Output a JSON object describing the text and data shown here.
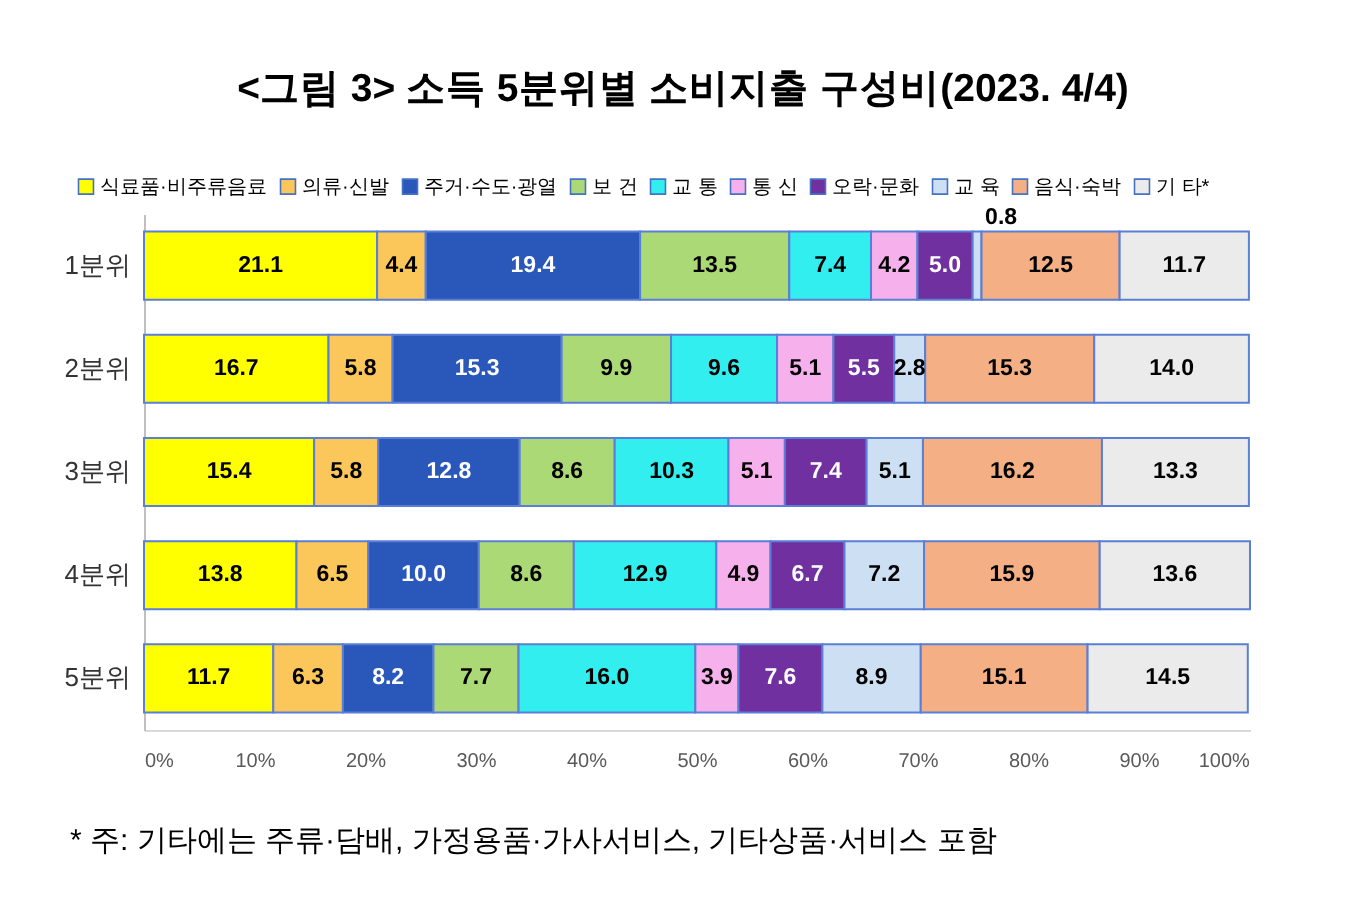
{
  "chart_data": {
    "type": "bar",
    "orientation": "horizontal",
    "stacked": true,
    "title": "<그림 3> 소득 5분위별 소비지출 구성비(2023. 4/4)",
    "categories": [
      "1분위",
      "2분위",
      "3분위",
      "4분위",
      "5분위"
    ],
    "series": [
      {
        "name": "식료품·비주류음료",
        "color": "#ffff00",
        "values": [
          21.1,
          16.7,
          15.4,
          13.8,
          11.7
        ],
        "value_labels": [
          "21.1",
          "16.7",
          "15.4",
          "13.8",
          "11.7"
        ]
      },
      {
        "name": "의류·신발",
        "color": "#fcc75a",
        "values": [
          4.4,
          5.8,
          5.8,
          6.5,
          6.3
        ],
        "value_labels": [
          "4.4",
          "5.8",
          "5.8",
          "6.5",
          "6.3"
        ]
      },
      {
        "name": "주거·수도·광열",
        "color": "#2a57ba",
        "values": [
          19.4,
          15.3,
          12.8,
          10.0,
          8.2
        ],
        "value_labels": [
          "19.4",
          "15.3",
          "12.8",
          "10.0",
          "8.2"
        ]
      },
      {
        "name": "보 건",
        "color": "#aad976",
        "values": [
          13.5,
          9.9,
          8.6,
          8.6,
          7.7
        ],
        "value_labels": [
          "13.5",
          "9.9",
          "8.6",
          "8.6",
          "7.7"
        ]
      },
      {
        "name": "교 통",
        "color": "#33eeee",
        "values": [
          7.4,
          9.6,
          10.3,
          12.9,
          16.0
        ],
        "value_labels": [
          "7.4",
          "9.6",
          "10.3",
          "12.9",
          "16.0"
        ]
      },
      {
        "name": "통 신",
        "color": "#f6b0ec",
        "values": [
          4.2,
          5.1,
          5.1,
          4.9,
          3.9
        ],
        "value_labels": [
          "4.2",
          "5.1",
          "5.1",
          "4.9",
          "3.9"
        ]
      },
      {
        "name": "오락·문화",
        "color": "#7030a0",
        "values": [
          5.0,
          5.5,
          7.4,
          6.7,
          7.6
        ],
        "value_labels": [
          "5.0",
          "5.5",
          "7.4",
          "6.7",
          "7.6"
        ]
      },
      {
        "name": "교 육",
        "color": "#cde0f3",
        "values": [
          0.8,
          2.8,
          5.1,
          7.2,
          8.9
        ],
        "value_labels": [
          "0.8",
          "2.8",
          "5.1",
          "7.2",
          "8.9"
        ]
      },
      {
        "name": "음식·숙박",
        "color": "#f4b084",
        "values": [
          12.5,
          15.3,
          16.2,
          15.9,
          15.1
        ],
        "value_labels": [
          "12.5",
          "15.3",
          "16.2",
          "15.9",
          "15.1"
        ]
      },
      {
        "name": "기 타*",
        "color": "#ebebeb",
        "values": [
          11.7,
          14.0,
          13.3,
          13.6,
          14.5
        ],
        "value_labels": [
          "11.7",
          "14.0",
          "13.3",
          "13.6",
          "14.5"
        ]
      }
    ],
    "xlim": [
      0,
      100.1
    ],
    "xticks": [
      {
        "value": 0,
        "label": "0%"
      },
      {
        "value": 10,
        "label": "10%"
      },
      {
        "value": 20,
        "label": "20%"
      },
      {
        "value": 30,
        "label": "30%"
      },
      {
        "value": 40,
        "label": "40%"
      },
      {
        "value": 50,
        "label": "50%"
      },
      {
        "value": 60,
        "label": "60%"
      },
      {
        "value": 70,
        "label": "70%"
      },
      {
        "value": 80,
        "label": "80%"
      },
      {
        "value": 90,
        "label": "90%"
      },
      {
        "value": 100,
        "label": "100%"
      }
    ],
    "legend": "top",
    "annotations": [
      "* 주: 기타에는 주류·담배, 가정용품·가사서비스, 기타상품·서비스 포함"
    ]
  }
}
